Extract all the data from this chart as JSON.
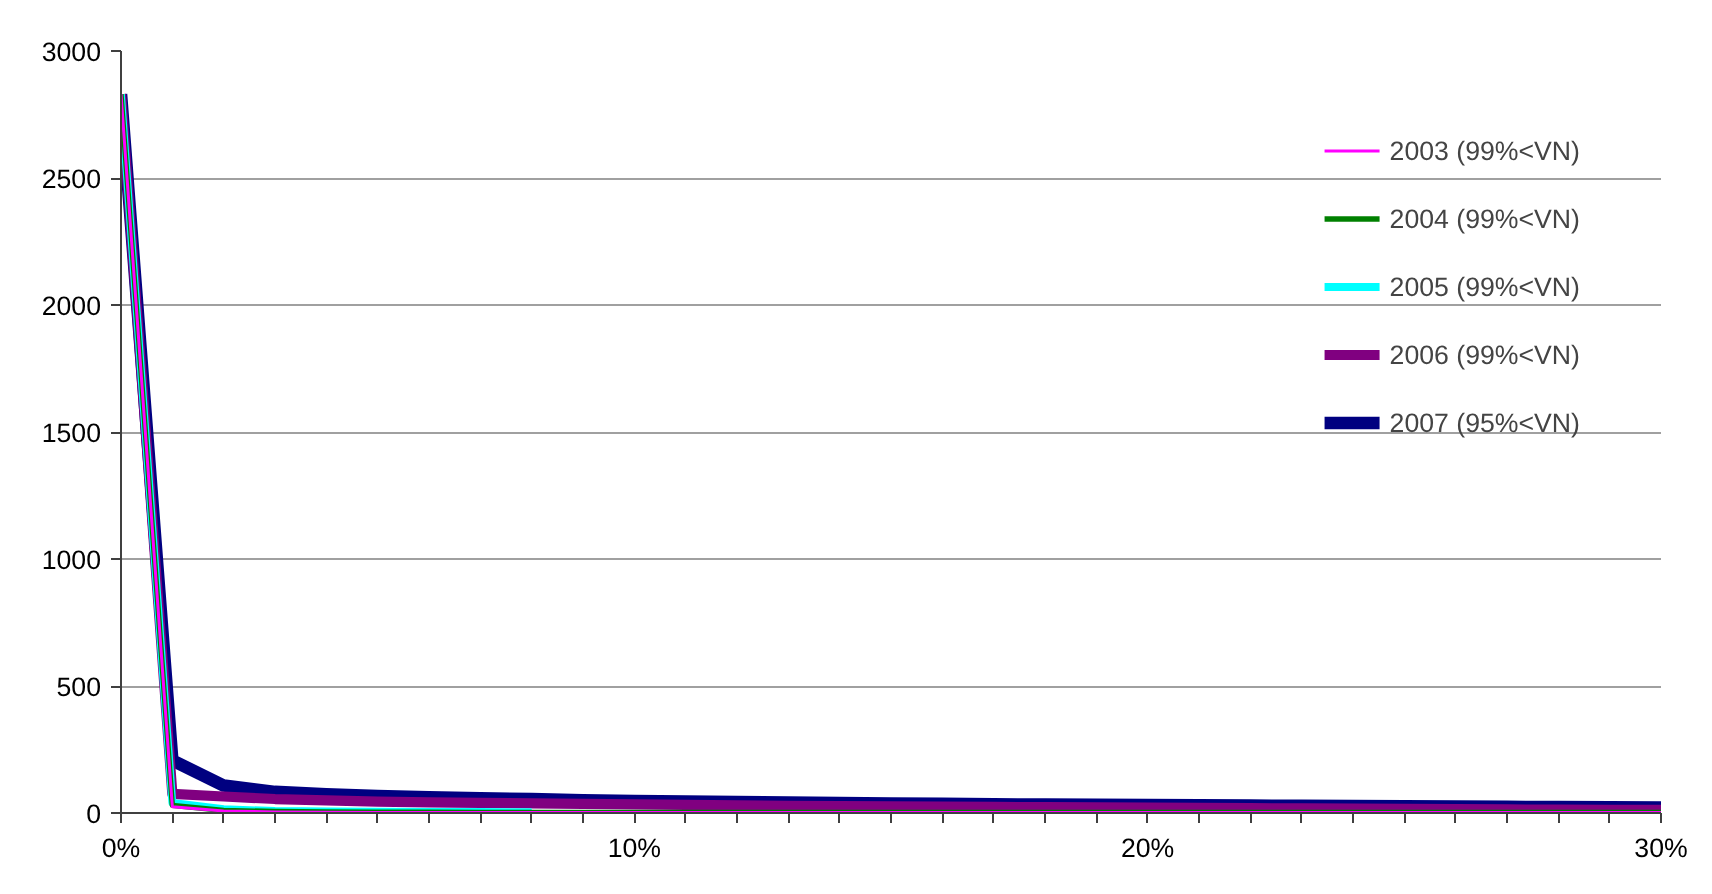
{
  "chart_data": {
    "type": "line",
    "x": [
      0,
      1,
      2,
      3,
      4,
      5,
      6,
      7,
      8,
      9,
      10,
      11,
      12,
      13,
      14,
      15,
      16,
      17,
      18,
      19,
      20,
      21,
      22,
      23,
      24,
      25,
      26,
      27,
      28,
      29,
      30
    ],
    "series": [
      {
        "name": "2003 (99%<VN)",
        "color": "#ff00ff",
        "values": [
          2830,
          25,
          8,
          4,
          3,
          2,
          2,
          2,
          2,
          2,
          2,
          2,
          2,
          2,
          2,
          2,
          2,
          2,
          2,
          2,
          2,
          2,
          2,
          2,
          2,
          2,
          2,
          2,
          2,
          2,
          2
        ]
      },
      {
        "name": "2004 (99%<VN)",
        "color": "#008000",
        "values": [
          2830,
          30,
          10,
          6,
          4,
          3,
          3,
          2,
          2,
          2,
          2,
          2,
          2,
          2,
          2,
          2,
          2,
          2,
          2,
          2,
          2,
          2,
          2,
          2,
          2,
          2,
          2,
          2,
          2,
          2,
          2
        ]
      },
      {
        "name": "2005 (99%<VN)",
        "color": "#00ffff",
        "values": [
          2830,
          40,
          15,
          8,
          6,
          5,
          4,
          4,
          3,
          null,
          null,
          null,
          null,
          null,
          null,
          null,
          null,
          null,
          null,
          null,
          null,
          null,
          null,
          null,
          null,
          null,
          null,
          null,
          null,
          null,
          null
        ]
      },
      {
        "name": "2006 (99%<VN)",
        "color": "#800080",
        "values": [
          2830,
          75,
          65,
          55,
          50,
          45,
          42,
          40,
          38,
          36,
          34,
          32,
          30,
          28,
          27,
          26,
          25,
          24,
          23,
          22,
          21,
          20,
          19,
          18,
          17,
          16,
          15,
          14,
          13,
          12,
          12
        ]
      },
      {
        "name": "2007 (95%<VN)",
        "color": "#000080",
        "values": [
          2830,
          207,
          108,
          83,
          74,
          67,
          62,
          58,
          55,
          50,
          47,
          45,
          43,
          41,
          39,
          37,
          36,
          34,
          33,
          32,
          31,
          30,
          29,
          28,
          27,
          26,
          25,
          24,
          23,
          22,
          21
        ]
      }
    ],
    "xlim": [
      0,
      30
    ],
    "xticks": [
      {
        "value": 0,
        "label": "0%"
      },
      {
        "value": 1,
        "label": null
      },
      {
        "value": 2,
        "label": null
      },
      {
        "value": 3,
        "label": null
      },
      {
        "value": 4,
        "label": null
      },
      {
        "value": 5,
        "label": null
      },
      {
        "value": 6,
        "label": null
      },
      {
        "value": 7,
        "label": null
      },
      {
        "value": 8,
        "label": null
      },
      {
        "value": 9,
        "label": null
      },
      {
        "value": 10,
        "label": "10%"
      },
      {
        "value": 11,
        "label": null
      },
      {
        "value": 12,
        "label": null
      },
      {
        "value": 13,
        "label": null
      },
      {
        "value": 14,
        "label": null
      },
      {
        "value": 15,
        "label": null
      },
      {
        "value": 16,
        "label": null
      },
      {
        "value": 17,
        "label": null
      },
      {
        "value": 18,
        "label": null
      },
      {
        "value": 19,
        "label": null
      },
      {
        "value": 20,
        "label": "20%"
      },
      {
        "value": 21,
        "label": null
      },
      {
        "value": 22,
        "label": null
      },
      {
        "value": 23,
        "label": null
      },
      {
        "value": 24,
        "label": null
      },
      {
        "value": 25,
        "label": null
      },
      {
        "value": 26,
        "label": null
      },
      {
        "value": 27,
        "label": null
      },
      {
        "value": 28,
        "label": null
      },
      {
        "value": 29,
        "label": null
      },
      {
        "value": 30,
        "label": "30%"
      }
    ],
    "ylim": [
      0,
      3000
    ],
    "yticks": [
      0,
      500,
      1000,
      1500,
      2000,
      2500,
      3000
    ],
    "grid": "y",
    "legend": "top right",
    "marker": "none",
    "line_style": "solid"
  }
}
